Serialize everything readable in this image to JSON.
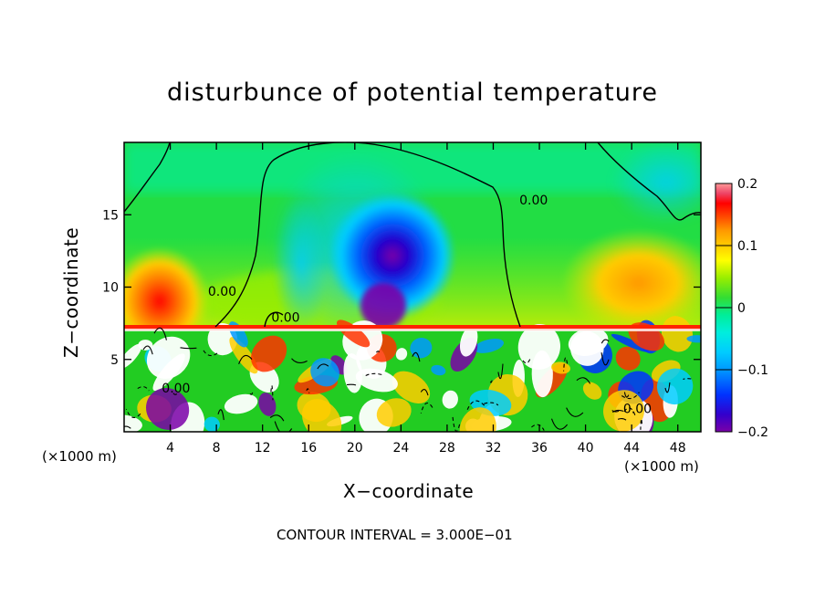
{
  "chart_data": {
    "type": "heatmap",
    "title": "disturbunce of potential temperature",
    "xlabel": "X−coordinate",
    "ylabel": "Z−coordinate",
    "x_unit": "(×1000 m)",
    "xlim": [
      0,
      50
    ],
    "ylim": [
      0,
      20
    ],
    "x_ticks": [
      4,
      8,
      12,
      16,
      20,
      24,
      28,
      32,
      36,
      40,
      44,
      48
    ],
    "y_ticks": [
      5,
      10,
      15
    ],
    "colorbar": {
      "range": [
        -0.2,
        0.2
      ],
      "tick_values": [
        -0.2,
        -0.1,
        0,
        0.1,
        0.2
      ],
      "tick_labels": [
        "−0.2",
        "−0.1",
        "0",
        "0.1",
        "0.2"
      ]
    },
    "contour_interval": "CONTOUR INTERVAL = 3.000E−01",
    "contour_labels": [
      {
        "text": "0.00",
        "x": 35.5,
        "z": 15.7
      },
      {
        "text": "0.00",
        "x": 8.5,
        "z": 9.4
      },
      {
        "text": "0.00",
        "x": 14.0,
        "z": 7.6
      },
      {
        "text": "0.00",
        "x": 4.5,
        "z": 2.7
      },
      {
        "text": "0.00",
        "x": 44.5,
        "z": 1.3
      }
    ],
    "regions": {
      "upper_layer_z_range": [
        7.3,
        20
      ],
      "lower_turbulent_layer_z_range": [
        0,
        7.3
      ],
      "negative_anomaly_core": {
        "x": 21.5,
        "z": 9.0,
        "value": -0.2
      },
      "positive_anomaly_left": {
        "x": 2.5,
        "z": 8.7,
        "value": 0.15
      },
      "positive_anomaly_right": {
        "x": 44.0,
        "z": 9.5,
        "value": 0.12
      }
    }
  },
  "colors": {
    "colorbar_stops": [
      "#7a00a8",
      "#3300cc",
      "#0033ff",
      "#0099ff",
      "#00ccff",
      "#00eedd",
      "#00ee99",
      "#33dd33",
      "#99ee00",
      "#ffff00",
      "#ffcc00",
      "#ff9900",
      "#ff4400",
      "#ff0000",
      "#ee4466",
      "#ff9999"
    ]
  }
}
